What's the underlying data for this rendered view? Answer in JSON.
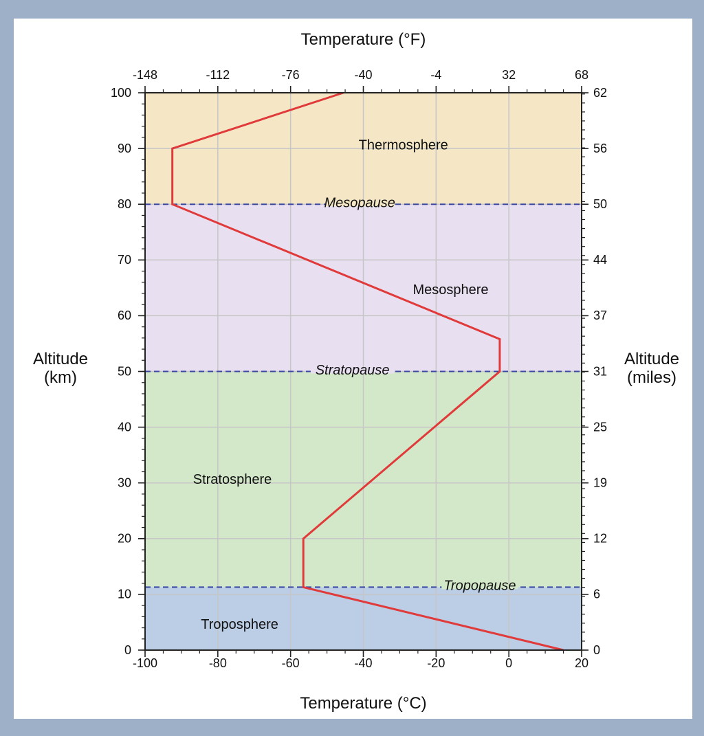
{
  "chart_data": {
    "type": "line",
    "xlabel": "Temperature (°C)",
    "x2label": "Temperature (°F)",
    "ylabel": "Altitude\n(km)",
    "y2label": "Altitude\n(miles)",
    "xlim": [
      -100,
      20
    ],
    "ylim": [
      0,
      100
    ],
    "grid": true,
    "x_ticks": [
      -100,
      -80,
      -60,
      -40,
      -20,
      0,
      20
    ],
    "x2_ticks": [
      "-148",
      "-112",
      "-76",
      "-40",
      "-4",
      "32",
      "68"
    ],
    "y_ticks": [
      0,
      10,
      20,
      30,
      40,
      50,
      60,
      70,
      80,
      90,
      100
    ],
    "y2_ticks": [
      "0",
      "6",
      "12",
      "19",
      "25",
      "31",
      "37",
      "44",
      "50",
      "56",
      "62"
    ],
    "layers": [
      {
        "name": "Troposphere",
        "from": 0,
        "to": 11.3,
        "color": "#bccde6",
        "label_x": -74,
        "label_y": 4.5
      },
      {
        "name": "Stratosphere",
        "from": 11.3,
        "to": 50,
        "color": "#d3e8c8",
        "label_x": -76,
        "label_y": 30.5
      },
      {
        "name": "Mesosphere",
        "from": 50,
        "to": 80,
        "color": "#e8dff0",
        "label_x": -16,
        "label_y": 64.5
      },
      {
        "name": "Thermosphere",
        "from": 80,
        "to": 100,
        "color": "#f5e6c6",
        "label_x": -29,
        "label_y": 90.5
      }
    ],
    "boundaries": [
      {
        "name": "Tropopause",
        "altitude": 11.3,
        "label_x": -8
      },
      {
        "name": "Stratopause",
        "altitude": 50,
        "label_x": -43
      },
      {
        "name": "Mesopause",
        "altitude": 80,
        "label_x": -41
      }
    ],
    "series": [
      {
        "x": [
          15,
          -56.5,
          -56.5,
          -2.5,
          -2.5,
          -92.5,
          -92.5,
          -45.5
        ],
        "y": [
          0,
          11.3,
          20,
          50,
          55.8,
          80,
          90,
          100
        ],
        "color": "#e03a3a"
      }
    ],
    "colors": {
      "line": "#e03a3a",
      "dashed": "#3949a3",
      "grid": "#c6c6c6",
      "frame": "#222222"
    }
  }
}
